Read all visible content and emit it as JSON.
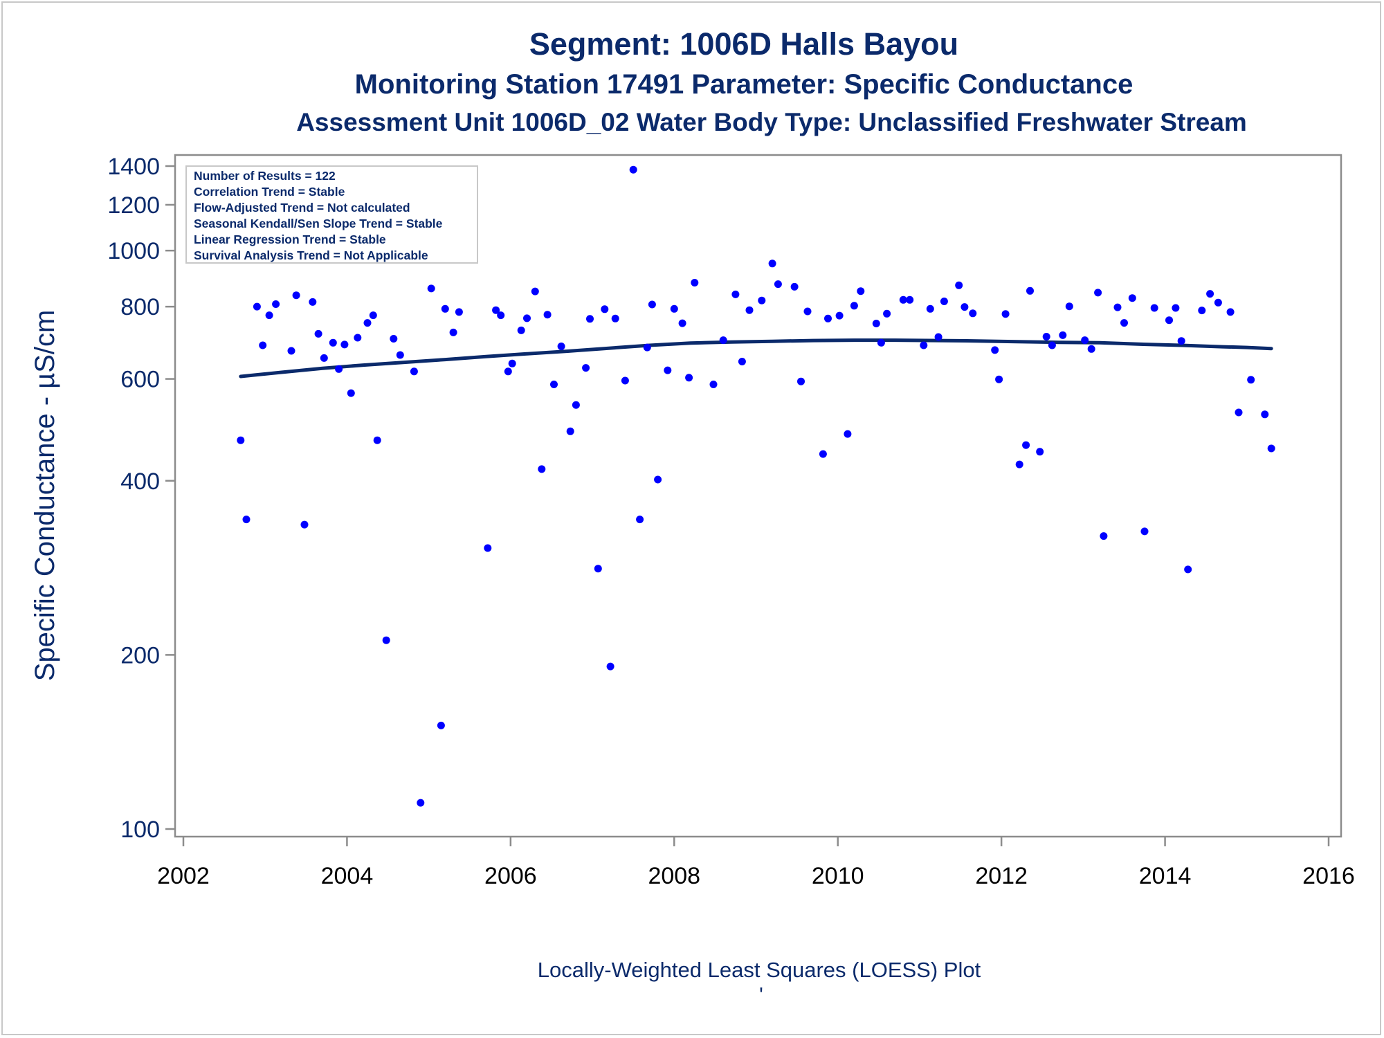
{
  "titles": {
    "line1": "Segment: 1006D  Halls Bayou",
    "line2": "Monitoring Station 17491 Parameter: Specific Conductance",
    "line3": "Assessment Unit 1006D_02   Water Body Type: Unclassified Freshwater Stream"
  },
  "stats_box": [
    "Number of Results = 122",
    "Correlation Trend = Stable",
    "Flow-Adjusted Trend = Not calculated",
    "Seasonal Kendall/Sen Slope Trend = Stable",
    "Linear Regression Trend = Stable",
    "Survival Analysis Trend = Not Applicable"
  ],
  "footnote": "Locally-Weighted Least Squares (LOESS) Plot",
  "footnote_mark": "'",
  "colors": {
    "text": "#0b2a6b",
    "points": "#0000ff",
    "loess": "#0b2a6b",
    "axis": "#8c8c8c"
  },
  "chart_data": {
    "type": "scatter",
    "ylabel": "Specific Conductance -  µS/cm",
    "xlabel": "",
    "x_scale": "linear (years)",
    "y_scale": "log",
    "xlim": [
      2002,
      2016
    ],
    "ylim": [
      95,
      1500
    ],
    "x_ticks": [
      2002,
      2004,
      2006,
      2008,
      2010,
      2012,
      2014,
      2016
    ],
    "y_ticks": [
      100,
      200,
      400,
      600,
      800,
      1000,
      1200,
      1400
    ],
    "grid": false,
    "series": [
      {
        "kind": "points",
        "points": [
          [
            2002.7,
            470
          ],
          [
            2002.77,
            343
          ],
          [
            2002.9,
            800
          ],
          [
            2002.97,
            686
          ],
          [
            2003.05,
            773
          ],
          [
            2003.13,
            808
          ],
          [
            2003.32,
            671
          ],
          [
            2003.38,
            837
          ],
          [
            2003.48,
            336
          ],
          [
            2003.58,
            815
          ],
          [
            2003.65,
            718
          ],
          [
            2003.72,
            652
          ],
          [
            2003.83,
            693
          ],
          [
            2003.9,
            624
          ],
          [
            2003.97,
            688
          ],
          [
            2004.05,
            567
          ],
          [
            2004.13,
            707
          ],
          [
            2004.25,
            750
          ],
          [
            2004.32,
            773
          ],
          [
            2004.37,
            470
          ],
          [
            2004.48,
            212
          ],
          [
            2004.57,
            704
          ],
          [
            2004.65,
            660
          ],
          [
            2004.82,
            618
          ],
          [
            2004.9,
            111
          ],
          [
            2005.03,
            860
          ],
          [
            2005.15,
            151
          ],
          [
            2005.2,
            793
          ],
          [
            2005.3,
            722
          ],
          [
            2005.37,
            783
          ],
          [
            2005.72,
            306
          ],
          [
            2005.82,
            789
          ],
          [
            2005.88,
            773
          ],
          [
            2005.97,
            618
          ],
          [
            2006.02,
            638
          ],
          [
            2006.13,
            728
          ],
          [
            2006.2,
            764
          ],
          [
            2006.3,
            850
          ],
          [
            2006.38,
            419
          ],
          [
            2006.45,
            775
          ],
          [
            2006.53,
            587
          ],
          [
            2006.62,
            683
          ],
          [
            2006.73,
            487
          ],
          [
            2006.8,
            541
          ],
          [
            2006.92,
            627
          ],
          [
            2006.97,
            762
          ],
          [
            2007.07,
            282
          ],
          [
            2007.15,
            792
          ],
          [
            2007.22,
            191
          ],
          [
            2007.28,
            763
          ],
          [
            2007.4,
            596
          ],
          [
            2007.5,
            1380
          ],
          [
            2007.58,
            343
          ],
          [
            2007.67,
            680
          ],
          [
            2007.73,
            807
          ],
          [
            2007.8,
            402
          ],
          [
            2007.92,
            621
          ],
          [
            2008.0,
            793
          ],
          [
            2008.1,
            749
          ],
          [
            2008.18,
            603
          ],
          [
            2008.25,
            880
          ],
          [
            2008.48,
            587
          ],
          [
            2008.6,
            700
          ],
          [
            2008.75,
            840
          ],
          [
            2008.83,
            643
          ],
          [
            2008.92,
            789
          ],
          [
            2009.07,
            820
          ],
          [
            2009.2,
            950
          ],
          [
            2009.27,
            875
          ],
          [
            2009.47,
            866
          ],
          [
            2009.55,
            594
          ],
          [
            2009.63,
            785
          ],
          [
            2009.82,
            445
          ],
          [
            2009.88,
            763
          ],
          [
            2010.02,
            772
          ],
          [
            2010.12,
            482
          ],
          [
            2010.2,
            803
          ],
          [
            2010.28,
            851
          ],
          [
            2010.47,
            748
          ],
          [
            2010.53,
            693
          ],
          [
            2010.6,
            778
          ],
          [
            2010.8,
            822
          ],
          [
            2010.88,
            822
          ],
          [
            2011.05,
            686
          ],
          [
            2011.13,
            793
          ],
          [
            2011.23,
            709
          ],
          [
            2011.3,
            817
          ],
          [
            2011.48,
            871
          ],
          [
            2011.55,
            799
          ],
          [
            2011.65,
            779
          ],
          [
            2011.92,
            673
          ],
          [
            2011.97,
            599
          ],
          [
            2012.05,
            777
          ],
          [
            2012.22,
            427
          ],
          [
            2012.3,
            461
          ],
          [
            2012.35,
            852
          ],
          [
            2012.47,
            449
          ],
          [
            2012.55,
            710
          ],
          [
            2012.62,
            686
          ],
          [
            2012.75,
            714
          ],
          [
            2012.83,
            801
          ],
          [
            2013.02,
            700
          ],
          [
            2013.1,
            676
          ],
          [
            2013.18,
            846
          ],
          [
            2013.25,
            321
          ],
          [
            2013.42,
            798
          ],
          [
            2013.5,
            750
          ],
          [
            2013.6,
            828
          ],
          [
            2013.75,
            327
          ],
          [
            2013.87,
            796
          ],
          [
            2014.05,
            758
          ],
          [
            2014.13,
            796
          ],
          [
            2014.2,
            698
          ],
          [
            2014.28,
            281
          ],
          [
            2014.45,
            788
          ],
          [
            2014.55,
            842
          ],
          [
            2014.65,
            813
          ],
          [
            2014.8,
            783
          ],
          [
            2014.9,
            525
          ],
          [
            2015.05,
            598
          ],
          [
            2015.22,
            521
          ],
          [
            2015.3,
            455
          ]
        ]
      },
      {
        "kind": "loess",
        "points": [
          [
            2002.7,
            606
          ],
          [
            2003.2,
            616
          ],
          [
            2003.7,
            626
          ],
          [
            2004.2,
            634
          ],
          [
            2004.7,
            641
          ],
          [
            2005.2,
            648
          ],
          [
            2005.7,
            656
          ],
          [
            2006.2,
            663
          ],
          [
            2006.7,
            670
          ],
          [
            2007.2,
            678
          ],
          [
            2007.7,
            686
          ],
          [
            2008.2,
            692
          ],
          [
            2008.7,
            695
          ],
          [
            2009.2,
            697
          ],
          [
            2009.7,
            699
          ],
          [
            2010.2,
            700
          ],
          [
            2010.7,
            700
          ],
          [
            2011.2,
            699
          ],
          [
            2011.7,
            698
          ],
          [
            2012.2,
            696
          ],
          [
            2012.7,
            694
          ],
          [
            2013.2,
            693
          ],
          [
            2013.7,
            689
          ],
          [
            2014.2,
            686
          ],
          [
            2014.7,
            682
          ],
          [
            2015.0,
            680
          ],
          [
            2015.3,
            677
          ]
        ]
      }
    ]
  }
}
